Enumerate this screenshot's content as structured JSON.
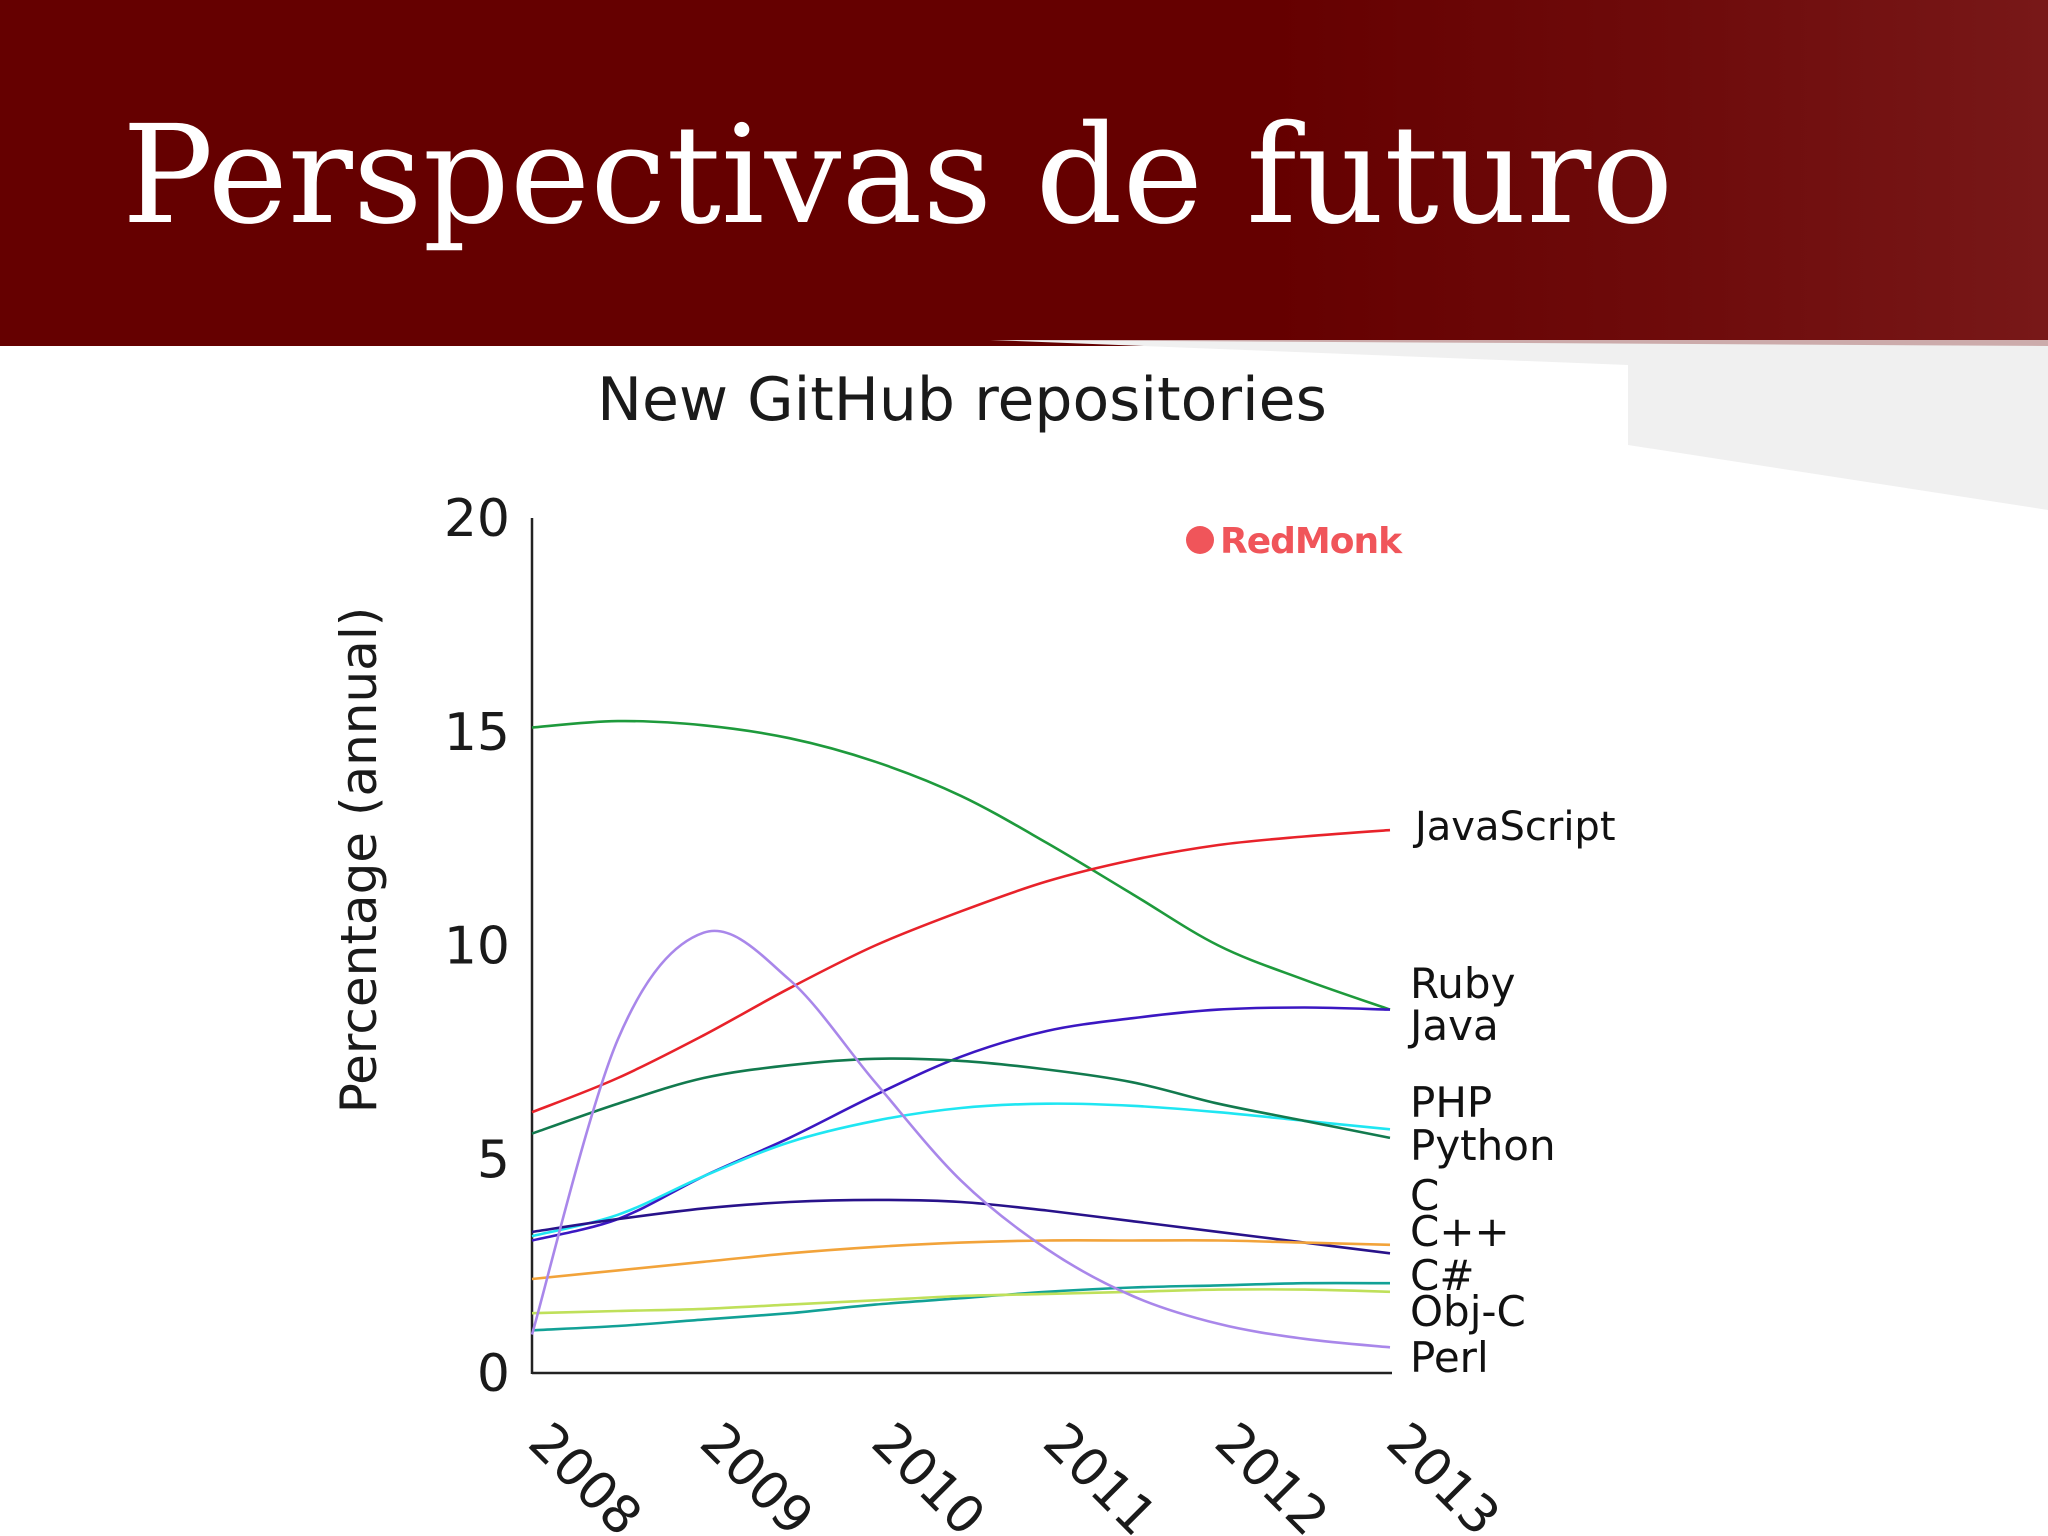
{
  "slide": {
    "title": "Perspectivas de futuro",
    "header_color": "#650000"
  },
  "chart_data": {
    "type": "line",
    "title": "New GitHub repositories",
    "ylabel": "Percentage (annual)",
    "xlabel": "",
    "x": [
      2008,
      2008.5,
      2009,
      2009.5,
      2010,
      2010.5,
      2011,
      2011.5,
      2012,
      2012.5,
      2013
    ],
    "xticks": [
      "2008",
      "2009",
      "2010",
      "2011",
      "2012",
      "2013"
    ],
    "xlim": [
      2008,
      2013
    ],
    "yticks": [
      "0",
      "5",
      "10",
      "15",
      "20"
    ],
    "ylim": [
      0,
      20
    ],
    "grid": false,
    "legend": "direct labels at right end of each line",
    "watermark": "RedMonk",
    "series": [
      {
        "name": "Ruby",
        "color": "#1e9a3c",
        "values": [
          15.1,
          15.25,
          15.15,
          14.85,
          14.3,
          13.5,
          12.4,
          11.2,
          10.0,
          9.2,
          8.5
        ]
      },
      {
        "name": "JavaScript",
        "color": "#e8222a",
        "values": [
          6.1,
          6.9,
          7.9,
          9.0,
          10.0,
          10.8,
          11.5,
          12.0,
          12.35,
          12.55,
          12.7
        ]
      },
      {
        "name": "Java",
        "color": "#3b17c2",
        "values": [
          3.1,
          3.6,
          4.6,
          5.5,
          6.5,
          7.4,
          8.0,
          8.3,
          8.5,
          8.55,
          8.5
        ]
      },
      {
        "name": "PHP",
        "color": "#1fe6f2",
        "values": [
          3.2,
          3.7,
          4.6,
          5.4,
          5.9,
          6.2,
          6.3,
          6.25,
          6.1,
          5.9,
          5.7
        ]
      },
      {
        "name": "Python",
        "color": "#127a4e",
        "values": [
          5.6,
          6.3,
          6.9,
          7.2,
          7.35,
          7.3,
          7.1,
          6.8,
          6.3,
          5.9,
          5.5
        ]
      },
      {
        "name": "C",
        "color": "#28128a",
        "values": [
          3.3,
          3.6,
          3.85,
          4.0,
          4.05,
          4.0,
          3.8,
          3.55,
          3.3,
          3.05,
          2.8
        ]
      },
      {
        "name": "C++",
        "color": "#f2a33a",
        "values": [
          2.2,
          2.4,
          2.6,
          2.8,
          2.95,
          3.05,
          3.1,
          3.1,
          3.1,
          3.05,
          3.0
        ]
      },
      {
        "name": "C#",
        "color": "#12a196",
        "values": [
          1.0,
          1.1,
          1.25,
          1.4,
          1.6,
          1.75,
          1.9,
          2.0,
          2.05,
          2.1,
          2.1
        ]
      },
      {
        "name": "Obj-C",
        "color": "#bfe05a",
        "values": [
          1.4,
          1.45,
          1.5,
          1.6,
          1.7,
          1.8,
          1.85,
          1.9,
          1.95,
          1.95,
          1.9
        ]
      },
      {
        "name": "Perl",
        "color": "#a987ea",
        "values": [
          0.9,
          7.8,
          10.3,
          9.2,
          6.8,
          4.5,
          2.9,
          1.8,
          1.15,
          0.8,
          0.6
        ]
      }
    ]
  }
}
